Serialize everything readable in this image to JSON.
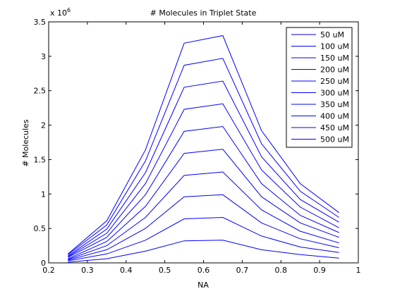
{
  "chart_data": {
    "type": "line",
    "title": "# Molecules in Triplet State",
    "xlabel": "NA",
    "ylabel": "# Molecules",
    "xlim": [
      0.2,
      1.0
    ],
    "ylim": [
      0,
      3.5
    ],
    "y_multiplier_label": "x 10",
    "y_multiplier_exponent": "6",
    "xticks": [
      "0.2",
      "0.3",
      "0.4",
      "0.5",
      "0.6",
      "0.7",
      "0.8",
      "0.9",
      "1"
    ],
    "yticks": [
      "0",
      "0.5",
      "1",
      "1.5",
      "2",
      "2.5",
      "3",
      "3.5"
    ],
    "grid": false,
    "legend_position": "top-right",
    "line_color": "#0000ff",
    "x": [
      0.25,
      0.35,
      0.45,
      0.55,
      0.65,
      0.75,
      0.85,
      0.95
    ],
    "series": [
      {
        "name": "50 uM",
        "values": [
          0.01,
          0.06,
          0.17,
          0.32,
          0.33,
          0.19,
          0.12,
          0.07
        ]
      },
      {
        "name": "100 uM",
        "values": [
          0.03,
          0.13,
          0.33,
          0.64,
          0.66,
          0.39,
          0.23,
          0.15
        ]
      },
      {
        "name": "150 uM",
        "values": [
          0.04,
          0.19,
          0.5,
          0.96,
          0.99,
          0.58,
          0.35,
          0.22
        ]
      },
      {
        "name": "200 uM",
        "values": [
          0.05,
          0.25,
          0.66,
          1.27,
          1.32,
          0.77,
          0.46,
          0.29
        ]
      },
      {
        "name": "250 uM",
        "values": [
          0.06,
          0.31,
          0.82,
          1.59,
          1.65,
          0.96,
          0.58,
          0.37
        ]
      },
      {
        "name": "300 uM",
        "values": [
          0.08,
          0.37,
          0.99,
          1.91,
          1.98,
          1.15,
          0.69,
          0.44
        ]
      },
      {
        "name": "350 uM",
        "values": [
          0.09,
          0.43,
          1.15,
          2.23,
          2.31,
          1.35,
          0.81,
          0.51
        ]
      },
      {
        "name": "400 uM",
        "values": [
          0.1,
          0.49,
          1.31,
          2.55,
          2.64,
          1.54,
          0.92,
          0.59
        ]
      },
      {
        "name": "450 uM",
        "values": [
          0.12,
          0.55,
          1.48,
          2.87,
          2.97,
          1.73,
          1.04,
          0.66
        ]
      },
      {
        "name": "500 uM",
        "values": [
          0.13,
          0.61,
          1.64,
          3.19,
          3.3,
          1.92,
          1.15,
          0.73
        ]
      }
    ]
  }
}
